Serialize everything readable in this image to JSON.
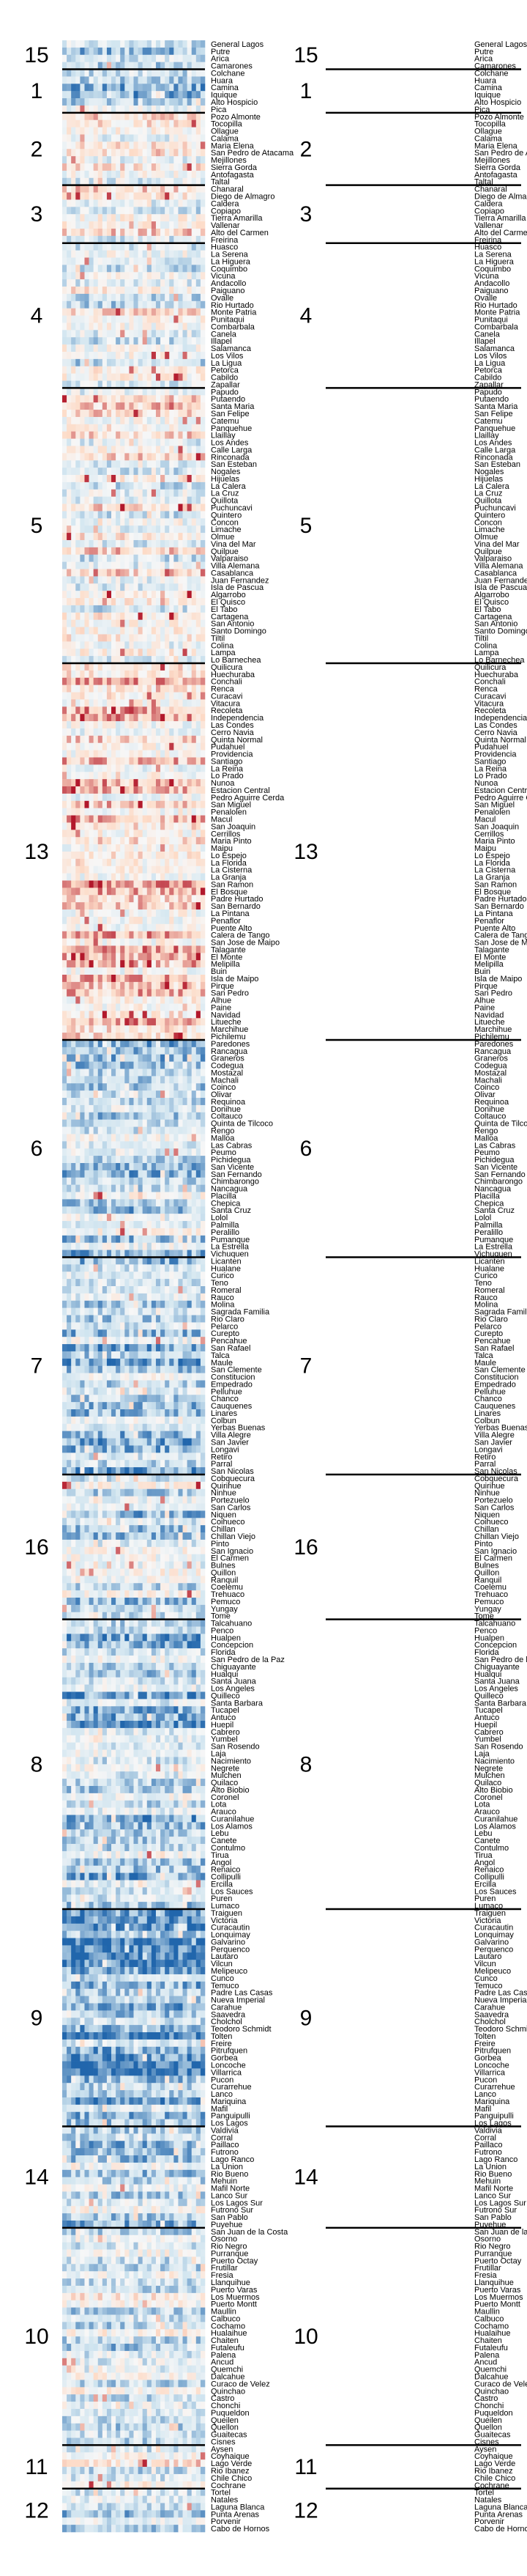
{
  "chart_data": {
    "type": "heatmap",
    "title": "",
    "xlabel": "",
    "ylabel": "",
    "columns": 32,
    "color_scale": {
      "low": "#2166ac",
      "mid_low": "#d1e5f0",
      "mid": "#f7f7f7",
      "mid_high": "#fddbc7",
      "high": "#b2182b"
    },
    "groups": [
      {
        "label": "15",
        "rows": 4,
        "level": 0.3,
        "comunas": [
          "General Lagos",
          "Putre",
          "Arica",
          "Camarones"
        ]
      },
      {
        "label": "1",
        "rows": 6,
        "level": 0.25,
        "comunas": [
          "Colchane",
          "Huara",
          "Camina",
          "Iquique",
          "Alto Hospicio",
          "Pica"
        ]
      },
      {
        "label": "2",
        "rows": 10,
        "level": 0.55,
        "comunas": [
          "Pozo Almonte",
          "Tocopilla",
          "Ollague",
          "Calama",
          "Maria Elena",
          "San Pedro de Atacama",
          "Mejillones",
          "Sierra Gorda",
          "Antofagasta",
          "Taltal"
        ]
      },
      {
        "label": "3",
        "rows": 8,
        "level": 0.5,
        "comunas": [
          "Chanaral",
          "Diego de Almagro",
          "Caldera",
          "Copiapo",
          "Tierra Amarilla",
          "Vallenar",
          "Alto del Carmen",
          "Freirina"
        ]
      },
      {
        "label": "4",
        "rows": 20,
        "level": 0.45,
        "comunas": [
          "Huasco",
          "La Serena",
          "La Higuera",
          "Coquimbo",
          "Vicuna",
          "Andacollo",
          "Paiguano",
          "Ovalle",
          "Rio Hurtado",
          "Monte Patria",
          "Punitaqui",
          "Combarbala",
          "Canela",
          "Illapel",
          "Salamanca",
          "Los Vilos",
          "La Ligua",
          "Petorca",
          "Cabildo",
          "Zapallar"
        ]
      },
      {
        "label": "5",
        "rows": 38,
        "level": 0.5,
        "comunas": [
          "Papudo",
          "Putaendo",
          "Santa Maria",
          "San Felipe",
          "Catemu",
          "Panquehue",
          "Llaillay",
          "Los Andes",
          "Calle Larga",
          "Rinconada",
          "San Esteban",
          "Nogales",
          "Hijuelas",
          "La Calera",
          "La Cruz",
          "Quillota",
          "Puchuncavi",
          "Quintero",
          "Concon",
          "Limache",
          "Olmue",
          "Vina del Mar",
          "Quilpue",
          "Valparaiso",
          "Villa Alemana",
          "Casablanca",
          "Juan Fernandez",
          "Isla de Pascua",
          "Algarrobo",
          "El Quisco",
          "El Tabo",
          "Cartagena",
          "San Antonio",
          "Santo Domingo",
          "Tiltil",
          "Colina",
          "Lampa",
          "Lo Barnechea"
        ]
      },
      {
        "label": "13",
        "rows": 52,
        "level": 0.6,
        "comunas": [
          "Quilicura",
          "Huechuraba",
          "Conchali",
          "Renca",
          "Curacavi",
          "Vitacura",
          "Recoleta",
          "Independencia",
          "Las Condes",
          "Cerro Navia",
          "Quinta Normal",
          "Pudahuel",
          "Providencia",
          "Santiago",
          "La Reina",
          "Lo Prado",
          "Nunoa",
          "Estacion Central",
          "Pedro Aguirre Cerda",
          "San Miguel",
          "Penalolen",
          "Macul",
          "San Joaquin",
          "Cerrillos",
          "Maria Pinto",
          "Maipu",
          "Lo Espejo",
          "La Florida",
          "La Cisterna",
          "La Granja",
          "San Ramon",
          "El Bosque",
          "Padre Hurtado",
          "San Bernardo",
          "La Pintana",
          "Penaflor",
          "Puente Alto",
          "Calera de Tango",
          "San Jose de Maipo",
          "Talagante",
          "El Monte",
          "Melipilla",
          "Buin",
          "Isla de Maipo",
          "Pirque",
          "San Pedro",
          "Alhue",
          "Paine",
          "Navidad",
          "Litueche",
          "Marchihue",
          "Pichilemu"
        ]
      },
      {
        "label": "6",
        "rows": 30,
        "level": 0.35,
        "comunas": [
          "Paredones",
          "Rancagua",
          "Graneros",
          "Codegua",
          "Mostazal",
          "Machali",
          "Coinco",
          "Olivar",
          "Requinoa",
          "Donihue",
          "Coltauco",
          "Quinta de Tilcoco",
          "Rengo",
          "Malloa",
          "Las Cabras",
          "Peumo",
          "Pichidegua",
          "San Vicente",
          "San Fernando",
          "Chimbarongo",
          "Nancagua",
          "Placilla",
          "Chepica",
          "Santa Cruz",
          "Lolol",
          "Palmilla",
          "Peralillo",
          "Pumanque",
          "La Estrella",
          "Vichuquen"
        ]
      },
      {
        "label": "7",
        "rows": 30,
        "level": 0.3,
        "comunas": [
          "Licanten",
          "Hualane",
          "Curico",
          "Teno",
          "Romeral",
          "Rauco",
          "Molina",
          "Sagrada Familia",
          "Rio Claro",
          "Pelarco",
          "Curepto",
          "Pencahue",
          "San Rafael",
          "Talca",
          "Maule",
          "San Clemente",
          "Constitucion",
          "Empedrado",
          "Pelluhue",
          "Chanco",
          "Cauquenes",
          "Linares",
          "Colbun",
          "Yerbas Buenas",
          "Villa Alegre",
          "San Javier",
          "Longavi",
          "Retiro",
          "Parral",
          "San Nicolas"
        ]
      },
      {
        "label": "16",
        "rows": 20,
        "level": 0.35,
        "comunas": [
          "Cobquecura",
          "Quirihue",
          "Ninhue",
          "Portezuelo",
          "San Carlos",
          "Niquen",
          "Coihueco",
          "Chillan",
          "Chillan Viejo",
          "Pinto",
          "San Ignacio",
          "El Carmen",
          "Bulnes",
          "Quillon",
          "Ranquil",
          "Coelemu",
          "Trehuaco",
          "Pemuco",
          "Yungay",
          "Tome"
        ]
      },
      {
        "label": "8",
        "rows": 40,
        "level": 0.3,
        "comunas": [
          "Talcahuano",
          "Penco",
          "Hualpen",
          "Concepcion",
          "Florida",
          "San Pedro de la Paz",
          "Chiguayante",
          "Hualqui",
          "Santa Juana",
          "Los Angeles",
          "Quilleco",
          "Santa Barbara",
          "Tucapel",
          "Antuco",
          "Huepil",
          "Cabrero",
          "Yumbel",
          "San Rosendo",
          "Laja",
          "Nacimiento",
          "Negrete",
          "Mulchen",
          "Quilaco",
          "Alto Biobio",
          "Coronel",
          "Lota",
          "Arauco",
          "Curanilahue",
          "Los Alamos",
          "Lebu",
          "Canete",
          "Contulmo",
          "Tirua",
          "Angol",
          "Renaico",
          "Collipulli",
          "Ercilla",
          "Los Sauces",
          "Puren",
          "Lumaco"
        ]
      },
      {
        "label": "9",
        "rows": 30,
        "level": 0.2,
        "comunas": [
          "Traiguen",
          "Victoria",
          "Curacautin",
          "Lonquimay",
          "Galvarino",
          "Perquenco",
          "Lautaro",
          "Vilcun",
          "Melipeuco",
          "Cunco",
          "Temuco",
          "Padre Las Casas",
          "Nueva Imperial",
          "Carahue",
          "Saavedra",
          "Cholchol",
          "Teodoro Schmidt",
          "Tolten",
          "Freire",
          "Pitrufquen",
          "Gorbea",
          "Loncoche",
          "Villarrica",
          "Pucon",
          "Curarrehue",
          "Lanco",
          "Mariquina",
          "Mafil",
          "Panguipulli",
          "Los Lagos"
        ]
      },
      {
        "label": "14",
        "rows": 14,
        "level": 0.35,
        "comunas": [
          "Valdivia",
          "Corral",
          "Paillaco",
          "Futrono",
          "Lago Ranco",
          "La Union",
          "Rio Bueno",
          "Mehuin",
          "Mafil Norte",
          "Lanco Sur",
          "Los Lagos Sur",
          "Futrono Sur",
          "San Pablo",
          "Puyehue"
        ]
      },
      {
        "label": "10",
        "rows": 30,
        "level": 0.4,
        "comunas": [
          "San Juan de la Costa",
          "Osorno",
          "Rio Negro",
          "Purranque",
          "Puerto Octay",
          "Frutillar",
          "Fresia",
          "Llanquihue",
          "Puerto Varas",
          "Los Muermos",
          "Puerto Montt",
          "Maullin",
          "Calbuco",
          "Cochamo",
          "Hualaihue",
          "Chaiten",
          "Futaleufu",
          "Palena",
          "Ancud",
          "Quemchi",
          "Dalcahue",
          "Curaco de Velez",
          "Quinchao",
          "Castro",
          "Chonchi",
          "Puqueldon",
          "Queilen",
          "Quellon",
          "Guaitecas",
          "Cisnes"
        ]
      },
      {
        "label": "11",
        "rows": 6,
        "level": 0.45,
        "comunas": [
          "Aysen",
          "Coyhaique",
          "Lago Verde",
          "Rio Ibanez",
          "Chile Chico",
          "Cochrane"
        ]
      },
      {
        "label": "12",
        "rows": 6,
        "level": 0.4,
        "comunas": [
          "Tortel",
          "Natales",
          "Laguna Blanca",
          "Punta Arenas",
          "Porvenir",
          "Cabo de Hornos"
        ]
      }
    ]
  }
}
